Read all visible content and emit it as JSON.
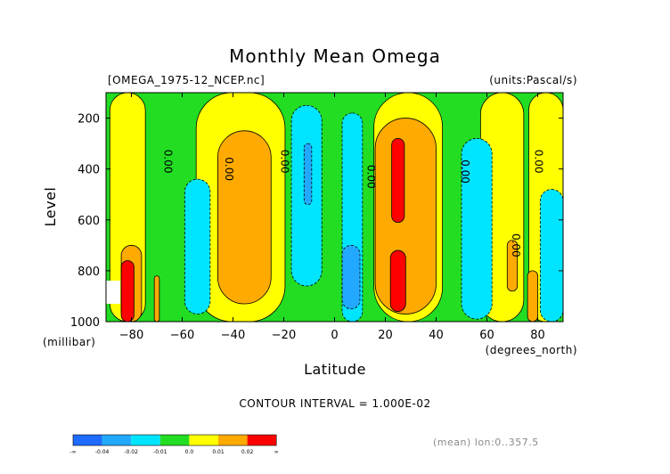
{
  "chart_data": {
    "type": "heatmap",
    "title": "Monthly Mean Omega",
    "source_label": "[OMEGA_1975-12_NCEP.nc]",
    "units_label": "(units:Pascal/s)",
    "xlabel": "Latitude",
    "x_units": "(degrees_north)",
    "ylabel": "Level",
    "y_units": "(millibar)",
    "xlim": [
      -90,
      90
    ],
    "ylim": [
      1000,
      100
    ],
    "x_ticks": [
      -80,
      -60,
      -40,
      -20,
      0,
      20,
      40,
      60,
      80
    ],
    "y_ticks": [
      200,
      400,
      600,
      800,
      1000
    ],
    "contour_interval_text": "CONTOUR INTERVAL = 1.000E-02",
    "zero_contour_label": "0.00",
    "zero_contour_labels": [
      {
        "lat": -67,
        "level": 370
      },
      {
        "lat": -43,
        "level": 400
      },
      {
        "lat": -21,
        "level": 370
      },
      {
        "lat": 13,
        "level": 430
      },
      {
        "lat": 50,
        "level": 410
      },
      {
        "lat": 70,
        "level": 700
      },
      {
        "lat": 79,
        "level": 370
      }
    ],
    "colorbar": {
      "levels": [
        "-∞",
        "-0.04",
        "-0.02",
        "-0.01",
        "0.0",
        "0.01",
        "0.02",
        "∞"
      ],
      "colors": [
        "#1e6bff",
        "#22a9ff",
        "#00e5ff",
        "#22dd22",
        "#ffff00",
        "#ffaa00",
        "#ff0000"
      ]
    },
    "footer": "(mean) lon:0..357.5",
    "bands": [
      {
        "kind": "yellow",
        "value": 0.005,
        "lat1": -88.5,
        "lat2": -74.5,
        "top": 100,
        "bottom": 1000
      },
      {
        "kind": "yellow",
        "value": 0.005,
        "lat1": -54.5,
        "lat2": -19.5,
        "top": 100,
        "bottom": 1000
      },
      {
        "kind": "yellow",
        "value": 0.005,
        "lat1": 15.5,
        "lat2": 42.5,
        "top": 100,
        "bottom": 1000
      },
      {
        "kind": "yellow",
        "value": 0.005,
        "lat1": 57.5,
        "lat2": 74.5,
        "top": 100,
        "bottom": 1000
      },
      {
        "kind": "yellow",
        "value": 0.005,
        "lat1": 76.5,
        "lat2": 90,
        "top": 100,
        "bottom": 1000
      },
      {
        "kind": "orange",
        "value": 0.015,
        "lat1": -84,
        "lat2": -76,
        "top": 700,
        "bottom": 1000
      },
      {
        "kind": "orange",
        "value": 0.015,
        "lat1": -71,
        "lat2": -69,
        "top": 820,
        "bottom": 1000
      },
      {
        "kind": "orange",
        "value": 0.015,
        "lat1": -46,
        "lat2": -25,
        "top": 250,
        "bottom": 930
      },
      {
        "kind": "orange",
        "value": 0.015,
        "lat1": 16,
        "lat2": 40,
        "top": 200,
        "bottom": 970
      },
      {
        "kind": "orange",
        "value": 0.015,
        "lat1": 68,
        "lat2": 72,
        "top": 680,
        "bottom": 880
      },
      {
        "kind": "orange",
        "value": 0.015,
        "lat1": 76,
        "lat2": 80,
        "top": 800,
        "bottom": 1000
      },
      {
        "kind": "red",
        "value": 0.025,
        "lat1": -84,
        "lat2": -79,
        "top": 760,
        "bottom": 1000
      },
      {
        "kind": "red",
        "value": 0.025,
        "lat1": 22.5,
        "lat2": 27.5,
        "top": 280,
        "bottom": 610
      },
      {
        "kind": "red",
        "value": 0.025,
        "lat1": 22,
        "lat2": 28,
        "top": 720,
        "bottom": 960
      },
      {
        "kind": "cyan",
        "value": -0.015,
        "lat1": -59,
        "lat2": -49,
        "top": 440,
        "bottom": 970
      },
      {
        "kind": "cyan",
        "value": -0.015,
        "lat1": -17,
        "lat2": -5,
        "top": 150,
        "bottom": 860
      },
      {
        "kind": "cyan",
        "value": -0.015,
        "lat1": 3,
        "lat2": 11,
        "top": 180,
        "bottom": 1000
      },
      {
        "kind": "cyan",
        "value": -0.015,
        "lat1": 50,
        "lat2": 62,
        "top": 280,
        "bottom": 990
      },
      {
        "kind": "cyan",
        "value": -0.015,
        "lat1": 81,
        "lat2": 90,
        "top": 480,
        "bottom": 1000
      },
      {
        "kind": "blue",
        "value": -0.025,
        "lat1": -12,
        "lat2": -9,
        "top": 300,
        "bottom": 540
      },
      {
        "kind": "blue",
        "value": -0.025,
        "lat1": 3,
        "lat2": 10,
        "top": 700,
        "bottom": 950
      }
    ]
  }
}
